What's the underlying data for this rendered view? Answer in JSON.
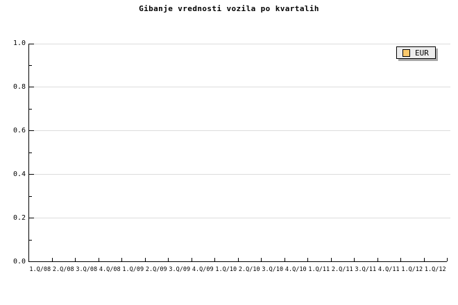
{
  "chart": {
    "title": "Gibanje vrednosti vozila po kvartalih"
  },
  "legend": {
    "items": [
      {
        "label": "EUR",
        "swatch_color": "#fbc96d"
      }
    ]
  },
  "colors": {
    "background": "#ffffff",
    "axis": "#000000",
    "gridline": "#dcdcdc",
    "legend_background": "#ededed",
    "legend_shadow": "#a9a9a9",
    "series_eur": "#fbc96d"
  },
  "chart_data": {
    "type": "line",
    "title": "Gibanje vrednosti vozila po kvartalih",
    "categories": [
      "1.Q/08",
      "2.Q/08",
      "3.Q/08",
      "4.Q/08",
      "1.Q/09",
      "2.Q/09",
      "3.Q/09",
      "4.Q/09",
      "1.Q/10",
      "2.Q/10",
      "3.Q/10",
      "4.Q/10",
      "1.Q/11",
      "2.Q/11",
      "3.Q/11",
      "4.Q/11",
      "1.Q/12",
      "1.Q/12"
    ],
    "series": [
      {
        "name": "EUR",
        "color": "#fbc96d",
        "values": []
      }
    ],
    "xlabel": "",
    "ylabel": "",
    "ylim": [
      0.0,
      1.0
    ],
    "ytick_labels": [
      "0.0",
      "0.2",
      "0.4",
      "0.6",
      "0.8",
      "1.0"
    ],
    "ytick_minor_step": 0.1,
    "grid": "horizontal-major",
    "legend_position": "top-right",
    "plot_empty": true
  }
}
